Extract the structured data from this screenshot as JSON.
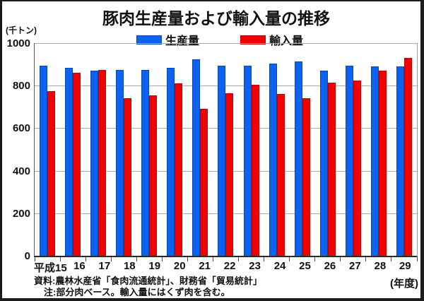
{
  "title": "豚肉生産量および輸入量の推移",
  "y_unit_label": "(千トン)",
  "x_unit_label": "(年度)",
  "footer": {
    "source_line": "資料:農林水産省「食肉流通統計」、財務省「貿易統計」",
    "note_line": "注:部分肉ベース。輸入量にはくず肉を含む。"
  },
  "colors": {
    "production_fill": "#0b63f0",
    "production_border": "#0846b8",
    "import_fill": "#f20000",
    "import_border": "#bd0000",
    "gridline": "#ababab",
    "frame_border": "#1b1b1b"
  },
  "chart_data": {
    "type": "bar",
    "title": "豚肉生産量および輸入量の推移",
    "ylabel": "(千トン)",
    "xlabel": "(年度)",
    "ylim": [
      0,
      1000
    ],
    "yticks": [
      1000,
      800,
      600,
      400,
      200,
      0
    ],
    "grid": true,
    "legend_position": "top-center",
    "categories": [
      "平成15",
      "16",
      "17",
      "18",
      "19",
      "20",
      "21",
      "22",
      "23",
      "24",
      "25",
      "26",
      "27",
      "28",
      "29"
    ],
    "series": [
      {
        "key": "production",
        "name": "生産量",
        "color": "#0b63f0",
        "border_color": "#0846b8",
        "values": [
          895,
          885,
          870,
          875,
          875,
          885,
          925,
          895,
          895,
          905,
          915,
          870,
          895,
          890,
          890
        ]
      },
      {
        "key": "import",
        "name": "輸入量",
        "color": "#f20000",
        "border_color": "#bd0000",
        "values": [
          775,
          860,
          875,
          740,
          755,
          810,
          690,
          765,
          805,
          760,
          740,
          815,
          825,
          870,
          930
        ]
      }
    ]
  }
}
